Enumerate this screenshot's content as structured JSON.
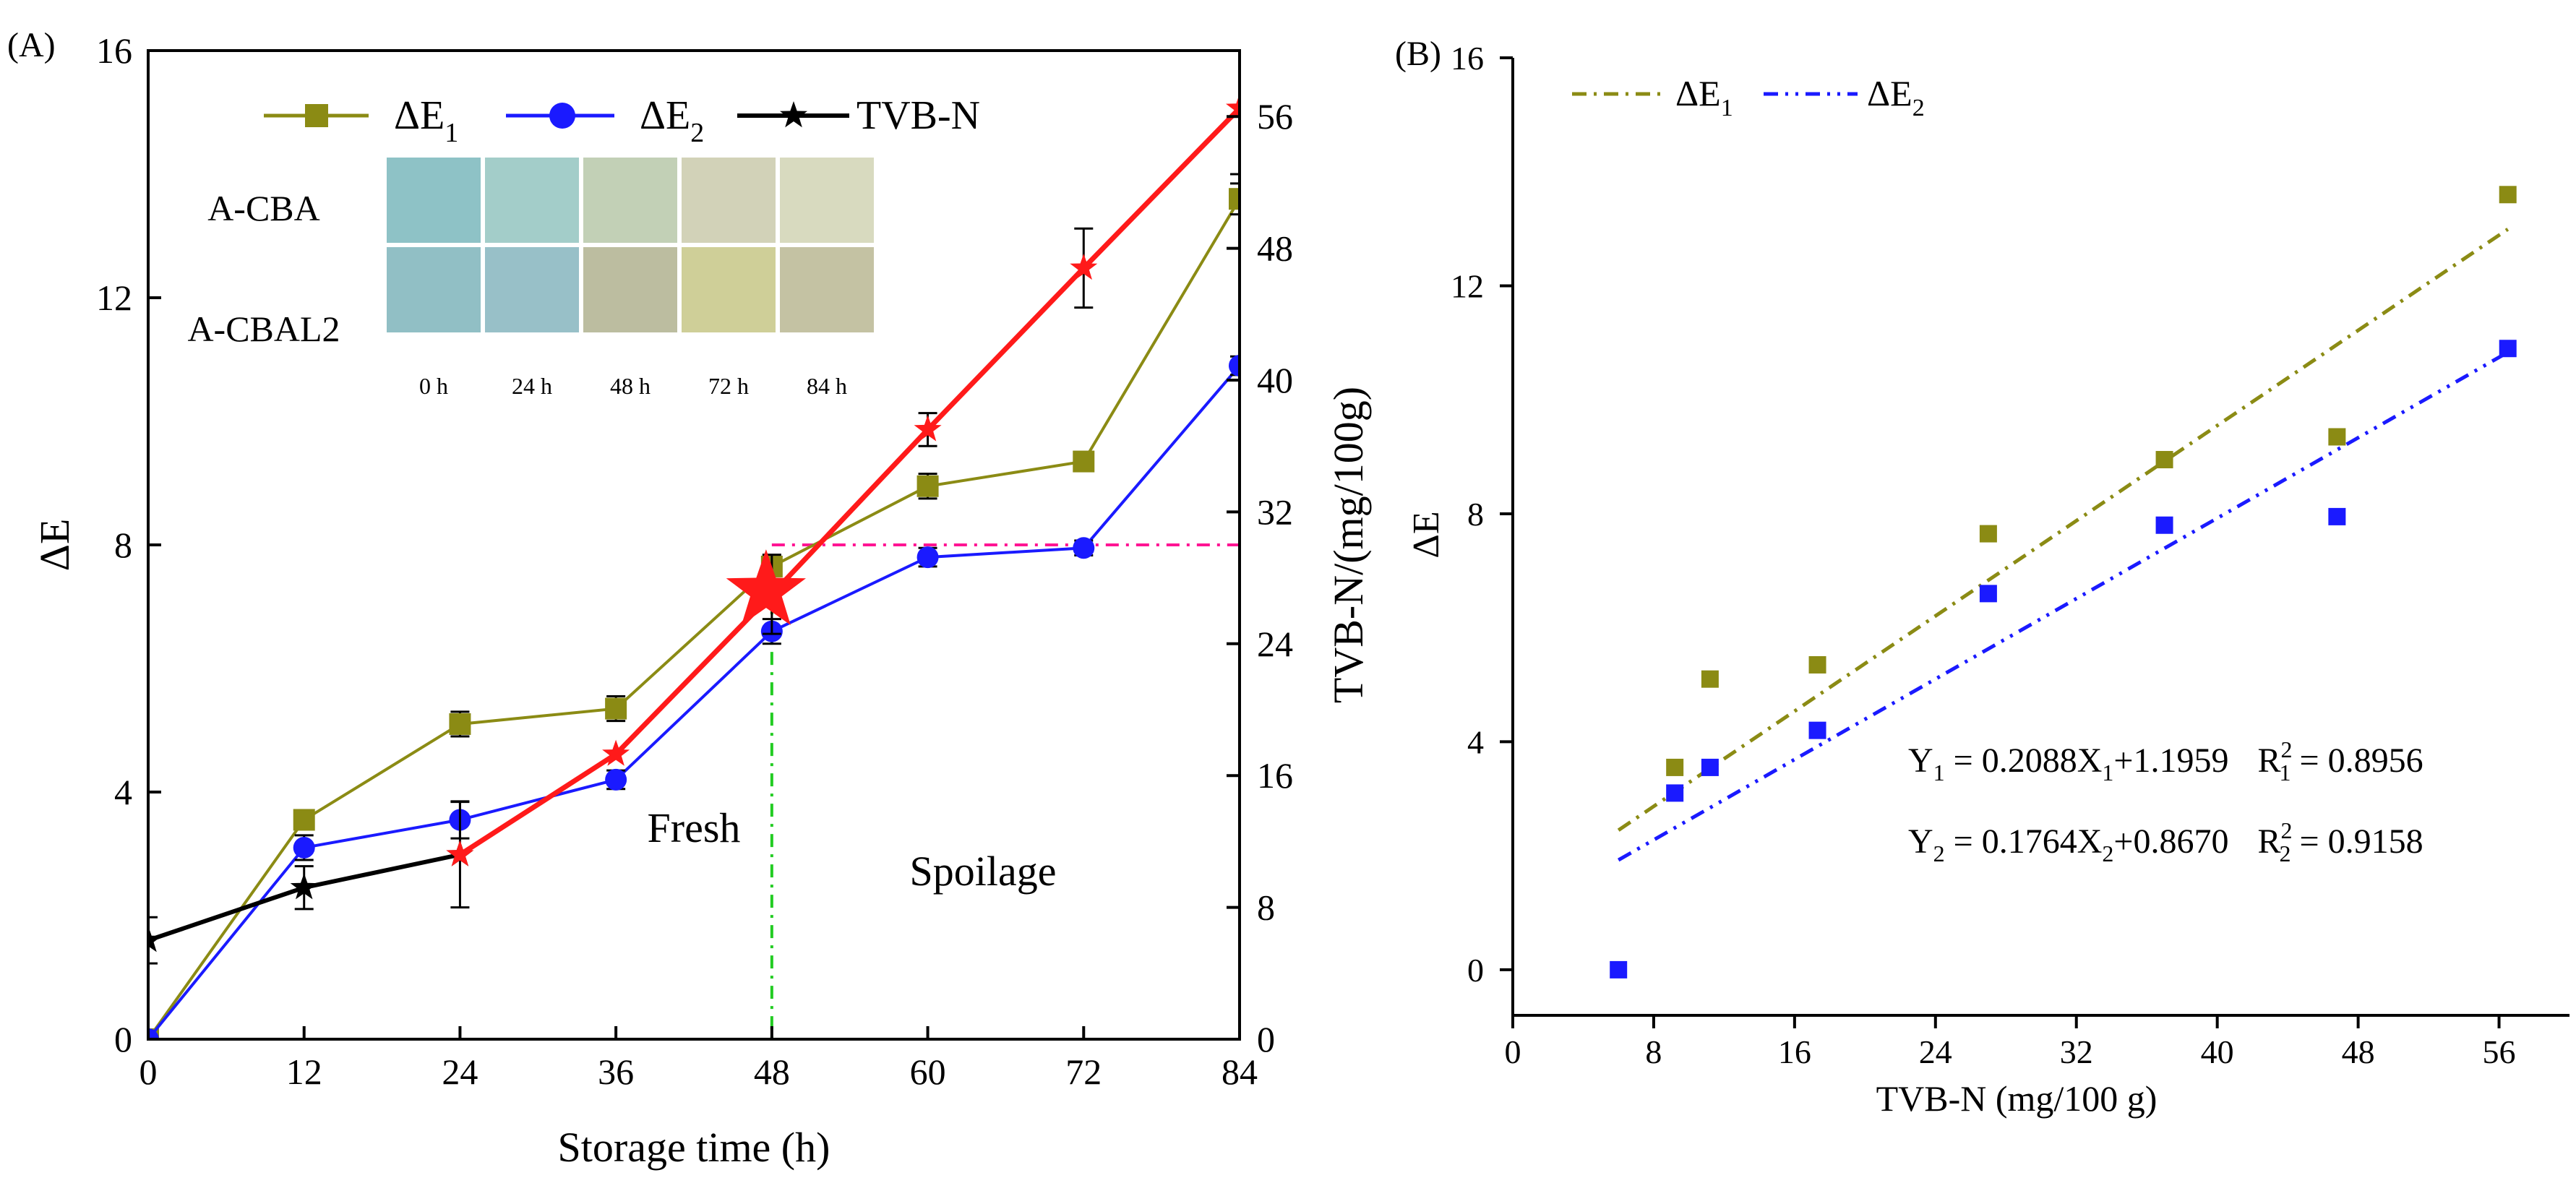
{
  "chart_data": [
    {
      "id": "A",
      "panel_label": "(A)",
      "type": "line",
      "xlabel": "Storage time (h)",
      "ylabel": "ΔE",
      "y2label": "TVB-N/(mg/100g)",
      "xlim": [
        0,
        84
      ],
      "ylim": [
        0,
        16
      ],
      "y2lim": [
        0,
        60
      ],
      "x_ticks": [
        0,
        12,
        24,
        36,
        48,
        60,
        72,
        84
      ],
      "y_ticks": [
        0,
        4,
        8,
        12,
        16
      ],
      "y2_ticks": [
        0,
        8,
        16,
        24,
        32,
        40,
        48,
        56
      ],
      "series": [
        {
          "name": "ΔE1",
          "label": "ΔE",
          "sub": "1",
          "color": "#8b8b14",
          "marker": "square",
          "axis": "left",
          "x": [
            0,
            12,
            24,
            36,
            48,
            60,
            72,
            84
          ],
          "values": [
            0,
            3.55,
            5.1,
            5.35,
            7.65,
            8.95,
            9.35,
            13.6
          ],
          "err": [
            0,
            0.1,
            0.2,
            0.2,
            0.15,
            0.2,
            0.1,
            0.25
          ]
        },
        {
          "name": "ΔE2",
          "label": "ΔE",
          "sub": "2",
          "color": "#1a1aff",
          "marker": "circle",
          "axis": "left",
          "x": [
            0,
            12,
            24,
            36,
            48,
            60,
            72,
            84
          ],
          "values": [
            0,
            3.1,
            3.55,
            4.2,
            6.6,
            7.8,
            7.95,
            10.9
          ],
          "err": [
            0,
            0.2,
            0.3,
            0.15,
            0.2,
            0.15,
            0.12,
            0.15
          ]
        },
        {
          "name": "TVB-N",
          "label": "TVB-N",
          "color": "#000000",
          "marker": "star",
          "axis": "right",
          "x": [
            0,
            12,
            24
          ],
          "values": [
            6.0,
            9.2,
            11.2
          ],
          "err": [
            1.4,
            1.3,
            3.2
          ]
        },
        {
          "name": "TVB-N (spoilage trend)",
          "color": "#ff1a1a",
          "marker": "star",
          "axis": "right",
          "in_legend": false,
          "x": [
            24,
            36,
            48,
            60,
            72,
            84
          ],
          "values": [
            11.2,
            17.3,
            27.0,
            37.0,
            46.8,
            56.5
          ],
          "err": [
            0,
            0,
            2.4,
            1.0,
            2.4,
            4.0
          ]
        }
      ],
      "threshold": {
        "x": 48,
        "y": 8,
        "marker_value_y": 7.25
      },
      "annotations": [
        "Fresh",
        "Spoilage"
      ],
      "inset": {
        "rows": [
          "A-CBA",
          "A-CBAL2"
        ],
        "columns": [
          "0 h",
          "24 h",
          "48 h",
          "72 h",
          "84 h"
        ],
        "colors": [
          [
            "#8ec2c6",
            "#a3cdc9",
            "#c2d0b6",
            "#d2d2b8",
            "#d8dabf"
          ],
          [
            "#91bfc5",
            "#98c0c8",
            "#bcbda0",
            "#cfcf98",
            "#c4c2a3"
          ]
        ]
      }
    },
    {
      "id": "B",
      "panel_label": "(B)",
      "type": "scatter",
      "xlabel": "TVB-N (mg/100 g)",
      "ylabel": "ΔE",
      "xlim": [
        0,
        60
      ],
      "ylim": [
        -0.8,
        16
      ],
      "x_ticks": [
        0,
        8,
        16,
        24,
        32,
        40,
        48,
        56
      ],
      "y_ticks": [
        0,
        4,
        8,
        12,
        16
      ],
      "series": [
        {
          "name": "ΔE1",
          "label": "ΔE",
          "sub": "1",
          "color": "#8b8b14",
          "x": [
            9.2,
            11.2,
            17.3,
            27.0,
            37.0,
            46.8,
            56.5
          ],
          "values": [
            3.55,
            5.1,
            5.35,
            7.65,
            8.95,
            9.35,
            13.6
          ],
          "fit": {
            "slope": 0.2088,
            "intercept": 1.1959,
            "x_range": [
              6.0,
              56.5
            ]
          }
        },
        {
          "name": "ΔE2",
          "label": "ΔE",
          "sub": "2",
          "color": "#1a1aff",
          "x": [
            6.0,
            9.2,
            11.2,
            17.3,
            27.0,
            37.0,
            46.8,
            56.5
          ],
          "values": [
            0,
            3.1,
            3.55,
            4.2,
            6.6,
            7.8,
            7.95,
            10.9
          ],
          "fit": {
            "slope": 0.1764,
            "intercept": 0.867,
            "x_range": [
              6.0,
              56.5
            ]
          }
        }
      ],
      "equations": [
        {
          "y_label": "Y",
          "y_sub": "1",
          "body": " = 0.2088X",
          "x_sub": "1",
          "tail": "+1.1959",
          "r_label": "R",
          "r_sup": "2",
          "r_sub": "1",
          "r_value": " = 0.8956"
        },
        {
          "y_label": "Y",
          "y_sub": "2",
          "body": " = 0.1764X",
          "x_sub": "2",
          "tail": "+0.8670",
          "r_label": "R",
          "r_sup": "2",
          "r_sub": "2",
          "r_value": " = 0.9158"
        }
      ]
    }
  ]
}
